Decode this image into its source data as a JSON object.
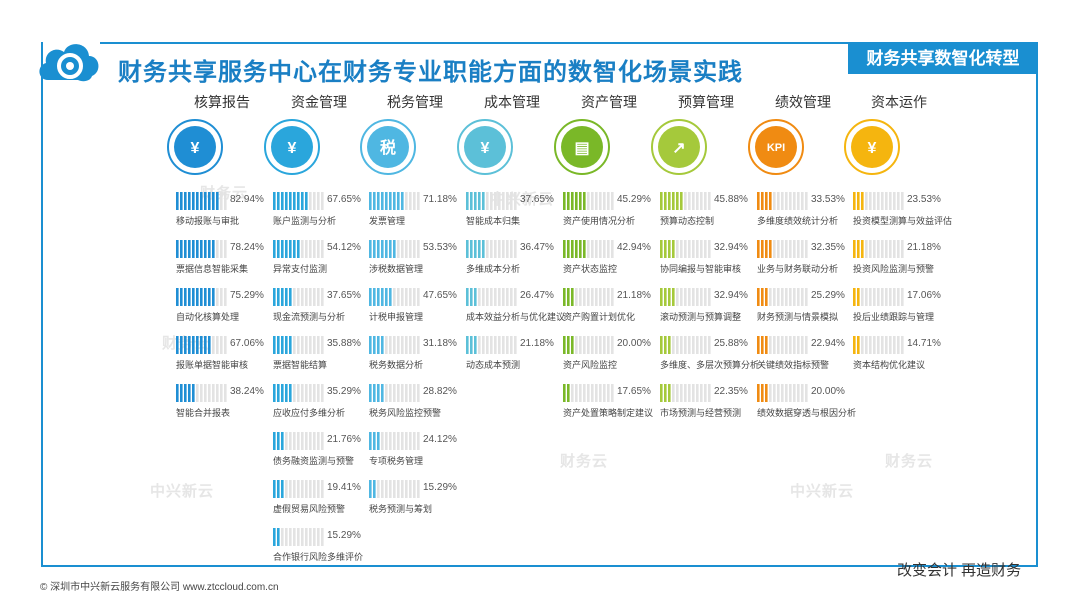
{
  "title": "财务共享服务中心在财务专业职能方面的数智化场景实践",
  "tag": "财务共享数智化转型",
  "footer_left": "© 深圳市中兴新云服务有限公司 www.ztccloud.com.cn",
  "footer_right": "改变会计  再造财务",
  "watermarks": [
    "财务云",
    "中兴新云",
    "财务云",
    "中兴新云",
    "财务云",
    "中兴新云",
    "财务云"
  ],
  "colors": {
    "accent": "#1a8fd1",
    "core": "#1f8ed4",
    "fund": "#2aa6dc",
    "tax": "#4fb7e2",
    "cost": "#5cc0d8",
    "asset": "#7ab828",
    "budget": "#a5c93b",
    "perf": "#f08b12",
    "capital": "#f5b50f"
  },
  "columns": [
    {
      "key": "core",
      "title": "核算报告",
      "icon": "invoice-yen-icon",
      "color": "#1f8ed4",
      "items": [
        {
          "label": "移动报账与审批",
          "value": "82.94%",
          "frac": 0.8294
        },
        {
          "label": "票据信息智能采集",
          "value": "78.24%",
          "frac": 0.7824
        },
        {
          "label": "自动化核算处理",
          "value": "75.29%",
          "frac": 0.7529
        },
        {
          "label": "报账单据智能审核",
          "value": "67.06%",
          "frac": 0.6706
        },
        {
          "label": "智能合并报表",
          "value": "38.24%",
          "frac": 0.3824
        }
      ]
    },
    {
      "key": "fund",
      "title": "资金管理",
      "icon": "yen-coin-icon",
      "color": "#2aa6dc",
      "items": [
        {
          "label": "账户监测与分析",
          "value": "67.65%",
          "frac": 0.6765
        },
        {
          "label": "异常支付监测",
          "value": "54.12%",
          "frac": 0.5412
        },
        {
          "label": "现金流预测与分析",
          "value": "37.65%",
          "frac": 0.3765
        },
        {
          "label": "票据智能结算",
          "value": "35.88%",
          "frac": 0.3588
        },
        {
          "label": "应收应付多维分析",
          "value": "35.29%",
          "frac": 0.3529
        },
        {
          "label": "债务融资监测与预警",
          "value": "21.76%",
          "frac": 0.2176
        },
        {
          "label": "虚假贸易风险预警",
          "value": "19.41%",
          "frac": 0.1941
        },
        {
          "label": "合作银行风险多维评价",
          "value": "15.29%",
          "frac": 0.1529
        }
      ]
    },
    {
      "key": "tax",
      "title": "税务管理",
      "icon": "tax-hand-icon",
      "color": "#4fb7e2",
      "items": [
        {
          "label": "发票管理",
          "value": "71.18%",
          "frac": 0.7118
        },
        {
          "label": "涉税数据管理",
          "value": "53.53%",
          "frac": 0.5353
        },
        {
          "label": "计税申报管理",
          "value": "47.65%",
          "frac": 0.4765
        },
        {
          "label": "税务数据分析",
          "value": "31.18%",
          "frac": 0.3118
        },
        {
          "label": "税务风险监控预警",
          "value": "28.82%",
          "frac": 0.2882
        },
        {
          "label": "专项税务管理",
          "value": "24.12%",
          "frac": 0.2412
        },
        {
          "label": "税务预测与筹划",
          "value": "15.29%",
          "frac": 0.1529
        }
      ]
    },
    {
      "key": "cost",
      "title": "成本管理",
      "icon": "cost-document-icon",
      "color": "#5cc0d8",
      "items": [
        {
          "label": "智能成本归集",
          "value": "37.65%",
          "frac": 0.3765
        },
        {
          "label": "多维成本分析",
          "value": "36.47%",
          "frac": 0.3647
        },
        {
          "label": "成本效益分析与优化建议",
          "value": "26.47%",
          "frac": 0.2647
        },
        {
          "label": "动态成本预测",
          "value": "21.18%",
          "frac": 0.2118
        }
      ]
    },
    {
      "key": "asset",
      "title": "资产管理",
      "icon": "asset-ledger-icon",
      "color": "#7ab828",
      "items": [
        {
          "label": "资产使用情况分析",
          "value": "45.29%",
          "frac": 0.4529
        },
        {
          "label": "资产状态监控",
          "value": "42.94%",
          "frac": 0.4294
        },
        {
          "label": "资产购置计划优化",
          "value": "21.18%",
          "frac": 0.2118
        },
        {
          "label": "资产风险监控",
          "value": "20.00%",
          "frac": 0.2
        },
        {
          "label": "资产处置策略制定建议",
          "value": "17.65%",
          "frac": 0.1765
        }
      ]
    },
    {
      "key": "budget",
      "title": "预算管理",
      "icon": "budget-chart-icon",
      "color": "#a5c93b",
      "items": [
        {
          "label": "预算动态控制",
          "value": "45.88%",
          "frac": 0.4588
        },
        {
          "label": "协同编报与智能审核",
          "value": "32.94%",
          "frac": 0.3294
        },
        {
          "label": "滚动预测与预算调整",
          "value": "32.94%",
          "frac": 0.3294
        },
        {
          "label": "多维度、多层次预算分析",
          "value": "25.88%",
          "frac": 0.2588
        },
        {
          "label": "市场预测与经营预测",
          "value": "22.35%",
          "frac": 0.2235
        }
      ]
    },
    {
      "key": "perf",
      "title": "绩效管理",
      "icon": "kpi-icon",
      "color": "#f08b12",
      "items": [
        {
          "label": "多维度绩效统计分析",
          "value": "33.53%",
          "frac": 0.3353
        },
        {
          "label": "业务与财务联动分析",
          "value": "32.35%",
          "frac": 0.3235
        },
        {
          "label": "财务预测与情景模拟",
          "value": "25.29%",
          "frac": 0.2529
        },
        {
          "label": "关键绩效指标预警",
          "value": "22.94%",
          "frac": 0.2294
        },
        {
          "label": "绩效数据穿透与根因分析",
          "value": "20.00%",
          "frac": 0.2
        }
      ]
    },
    {
      "key": "capital",
      "title": "资本运作",
      "icon": "capital-cycle-icon",
      "color": "#f5b50f",
      "items": [
        {
          "label": "投资模型测算与效益评估",
          "value": "23.53%",
          "frac": 0.2353
        },
        {
          "label": "投资风险监测与预警",
          "value": "21.18%",
          "frac": 0.2118
        },
        {
          "label": "投后业绩跟踪与管理",
          "value": "17.06%",
          "frac": 0.1706
        },
        {
          "label": "资本结构优化建议",
          "value": "14.71%",
          "frac": 0.1471
        }
      ]
    }
  ]
}
